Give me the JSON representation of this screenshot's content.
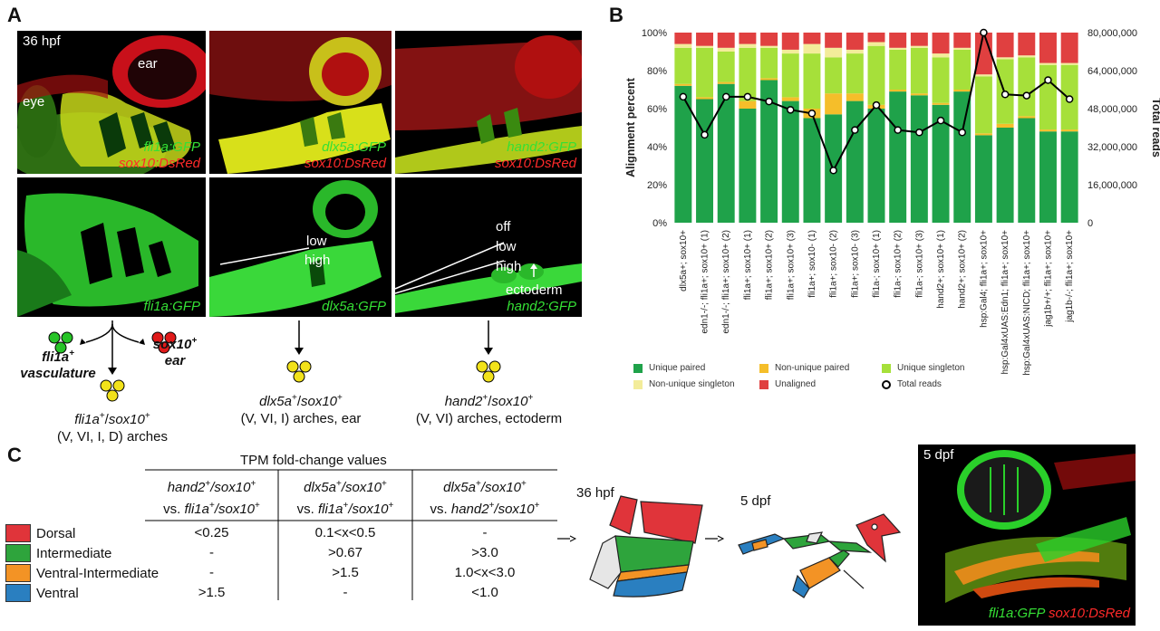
{
  "panel_a": {
    "letter": "A",
    "top_row": {
      "stage": "36 hpf",
      "ear_label": "ear",
      "eye_label": "eye",
      "panels": [
        {
          "green": "fli1a:GFP",
          "red": "sox10:DsRed"
        },
        {
          "green": "dlx5a:GFP",
          "red": "sox10:DsRed"
        },
        {
          "green": "hand2:GFP",
          "red": "sox10:DsRed"
        }
      ]
    },
    "bottom_row": {
      "panels": [
        {
          "green": "fli1a:GFP"
        },
        {
          "green": "dlx5a:GFP",
          "low": "low",
          "high": "high"
        },
        {
          "green": "hand2:GFP",
          "off": "off",
          "low": "low",
          "high": "high",
          "ectoderm": "ectoderm"
        }
      ]
    },
    "schematics": {
      "vasculature": {
        "sym": "fli1a",
        "sup": "+",
        "rest": "vasculature"
      },
      "ear": {
        "sym": "sox10",
        "sup": "+",
        "rest": "ear"
      },
      "col1": {
        "sym1": "fli1a",
        "sym2": "sox10",
        "line2": "(V, VI, I, D) arches"
      },
      "col2": {
        "sym1": "dlx5a",
        "sym2": "sox10",
        "line2": "(V, VI, I) arches, ear"
      },
      "col3": {
        "sym1": "hand2",
        "sym2": "sox10",
        "line2": "(V, VI) arches, ectoderm"
      },
      "plus": "+",
      "slash": "/"
    }
  },
  "panel_b": {
    "letter": "B"
  },
  "chart_data": {
    "type": "bar",
    "stacked": true,
    "ylabel": "Alignment percent",
    "y2label": "Total reads",
    "ylim": [
      0,
      100
    ],
    "y_ticks": [
      "0%",
      "20%",
      "40%",
      "60%",
      "80%",
      "100%"
    ],
    "y2lim": [
      0,
      80000000
    ],
    "y2_ticks": [
      "0",
      "16,000,000",
      "32,000,000",
      "48,000,000",
      "64,000,000",
      "80,000,000"
    ],
    "categories": [
      "dlx5a+; sox10+",
      "edn1-/-; fli1a+; sox10+ (1)",
      "edn1-/-; fli1a+; sox10+ (2)",
      "fli1a+; sox10+ (1)",
      "fli1a+; sox10+ (2)",
      "fli1a+; sox10+ (3)",
      "fli1a+; sox10- (1)",
      "fli1a+; sox10- (2)",
      "fli1a+; sox10- (3)",
      "fli1a-; sox10+ (1)",
      "fli1a-; sox10+ (2)",
      "fli1a-; sox10+ (3)",
      "hand2+; sox10+ (1)",
      "hand2+; sox10+ (2)",
      "hsp:Gal4; fli1a+; sox10+",
      "hsp:Gal4xUAS:Edn1; fli1a+; sox10+",
      "hsp:Gal4xUAS:NICD; fli1a+; sox10+",
      "jag1b+/+; fli1a+; sox10+",
      "jag1b-/-; fli1a+; sox10+"
    ],
    "series": [
      {
        "name": "Unique paired",
        "color": "#1fa24a",
        "values": [
          72,
          65,
          73,
          60,
          75,
          64,
          55,
          57,
          64,
          60,
          69,
          67,
          62,
          69,
          46,
          50,
          55,
          48,
          48
        ]
      },
      {
        "name": "Non-unique paired",
        "color": "#f5be2a",
        "values": [
          1,
          1,
          1,
          4,
          1,
          2,
          5,
          11,
          4,
          2,
          1,
          1,
          1,
          1,
          1,
          2,
          1,
          1,
          1
        ]
      },
      {
        "name": "Unique singleton",
        "color": "#a6e03a",
        "values": [
          19,
          26,
          16,
          28,
          16,
          23,
          29,
          19,
          21,
          31,
          21,
          24,
          24,
          21,
          30,
          34,
          31,
          34,
          34
        ]
      },
      {
        "name": "Non-unique singleton",
        "color": "#f3ec9a",
        "values": [
          2,
          1,
          2,
          2,
          1,
          2,
          5,
          5,
          2,
          2,
          1,
          1,
          2,
          1,
          1,
          1,
          1,
          1,
          1
        ]
      },
      {
        "name": "Unaligned",
        "color": "#e04040",
        "values": [
          6,
          7,
          8,
          6,
          7,
          9,
          6,
          8,
          9,
          5,
          8,
          7,
          11,
          8,
          22,
          13,
          12,
          16,
          16
        ]
      }
    ],
    "line": {
      "name": "Total reads",
      "values": [
        53000000,
        37000000,
        53000000,
        53000000,
        51000000,
        47500000,
        46000000,
        22000000,
        39000000,
        49500000,
        39000000,
        38000000,
        43000000,
        38000000,
        80000000,
        54000000,
        53500000,
        60000000,
        52000000
      ]
    }
  },
  "legend": [
    {
      "label": "Unique paired",
      "color": "#1fa24a"
    },
    {
      "label": "Non-unique paired",
      "color": "#f5be2a"
    },
    {
      "label": "Unique singleton",
      "color": "#a6e03a"
    },
    {
      "label": "Non-unique singleton",
      "color": "#f3ec9a"
    },
    {
      "label": "Unaligned",
      "color": "#e04040"
    },
    {
      "label": "Total reads",
      "color": "#000000"
    }
  ],
  "panel_c": {
    "letter": "C",
    "table_title": "TPM fold-change values",
    "header": {
      "c1a": "hand2",
      "c1b": "/sox10",
      "c1c": "vs. ",
      "c1d": "fli1a",
      "c1e": "/sox10",
      "c2a": "dlx5a",
      "c2b": "/sox10",
      "c2c": "vs. ",
      "c2d": "fli1a",
      "c2e": "/sox10",
      "c3a": "dlx5a",
      "c3b": "/sox10",
      "c3c": "vs. ",
      "c3d": "hand2",
      "c3e": "/sox10",
      "plus": "+"
    },
    "rows": [
      {
        "label": "Dorsal",
        "color": "#e0343a",
        "v": [
          "<0.25",
          "0.1<x<0.5",
          "-"
        ]
      },
      {
        "label": "Intermediate",
        "color": "#2ea43c",
        "v": [
          "-",
          ">0.67",
          ">3.0"
        ]
      },
      {
        "label": "Ventral-Intermediate",
        "color": "#f39325",
        "v": [
          "-",
          ">1.5",
          "1.0<x<3.0"
        ]
      },
      {
        "label": "Ventral",
        "color": "#2a7fc0",
        "v": [
          ">1.5",
          "-",
          "<1.0"
        ]
      }
    ],
    "stage1": "36 hpf",
    "stage2": "5 dpf",
    "photo": {
      "stage": "5 dpf",
      "green": "fli1a:GFP",
      "red": "sox10:DsRed"
    }
  }
}
